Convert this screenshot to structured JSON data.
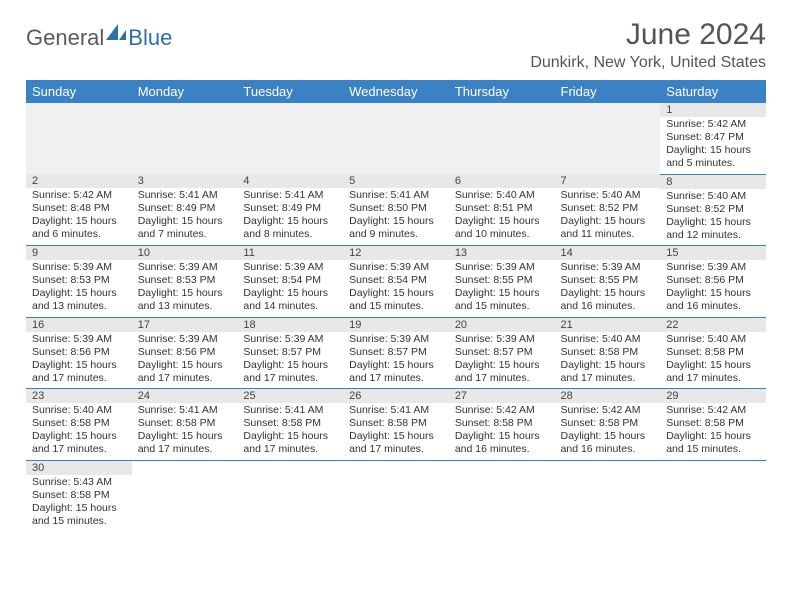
{
  "logo": {
    "general": "General",
    "blue": "Blue"
  },
  "title": "June 2024",
  "location": "Dunkirk, New York, United States",
  "colors": {
    "header_bg": "#3b82c4",
    "header_text": "#ffffff",
    "daynum_bg": "#e8e8e8",
    "cell_border": "#3b82c4",
    "logo_gray": "#5a5a5a",
    "logo_blue": "#2f6fa8"
  },
  "weekdays": [
    "Sunday",
    "Monday",
    "Tuesday",
    "Wednesday",
    "Thursday",
    "Friday",
    "Saturday"
  ],
  "weeks": [
    [
      {
        "blank": true
      },
      {
        "blank": true
      },
      {
        "blank": true
      },
      {
        "blank": true
      },
      {
        "blank": true
      },
      {
        "blank": true
      },
      {
        "day": "1",
        "sunrise": "Sunrise: 5:42 AM",
        "sunset": "Sunset: 8:47 PM",
        "daylight": "Daylight: 15 hours and 5 minutes."
      }
    ],
    [
      {
        "day": "2",
        "sunrise": "Sunrise: 5:42 AM",
        "sunset": "Sunset: 8:48 PM",
        "daylight": "Daylight: 15 hours and 6 minutes."
      },
      {
        "day": "3",
        "sunrise": "Sunrise: 5:41 AM",
        "sunset": "Sunset: 8:49 PM",
        "daylight": "Daylight: 15 hours and 7 minutes."
      },
      {
        "day": "4",
        "sunrise": "Sunrise: 5:41 AM",
        "sunset": "Sunset: 8:49 PM",
        "daylight": "Daylight: 15 hours and 8 minutes."
      },
      {
        "day": "5",
        "sunrise": "Sunrise: 5:41 AM",
        "sunset": "Sunset: 8:50 PM",
        "daylight": "Daylight: 15 hours and 9 minutes."
      },
      {
        "day": "6",
        "sunrise": "Sunrise: 5:40 AM",
        "sunset": "Sunset: 8:51 PM",
        "daylight": "Daylight: 15 hours and 10 minutes."
      },
      {
        "day": "7",
        "sunrise": "Sunrise: 5:40 AM",
        "sunset": "Sunset: 8:52 PM",
        "daylight": "Daylight: 15 hours and 11 minutes."
      },
      {
        "day": "8",
        "sunrise": "Sunrise: 5:40 AM",
        "sunset": "Sunset: 8:52 PM",
        "daylight": "Daylight: 15 hours and 12 minutes."
      }
    ],
    [
      {
        "day": "9",
        "sunrise": "Sunrise: 5:39 AM",
        "sunset": "Sunset: 8:53 PM",
        "daylight": "Daylight: 15 hours and 13 minutes."
      },
      {
        "day": "10",
        "sunrise": "Sunrise: 5:39 AM",
        "sunset": "Sunset: 8:53 PM",
        "daylight": "Daylight: 15 hours and 13 minutes."
      },
      {
        "day": "11",
        "sunrise": "Sunrise: 5:39 AM",
        "sunset": "Sunset: 8:54 PM",
        "daylight": "Daylight: 15 hours and 14 minutes."
      },
      {
        "day": "12",
        "sunrise": "Sunrise: 5:39 AM",
        "sunset": "Sunset: 8:54 PM",
        "daylight": "Daylight: 15 hours and 15 minutes."
      },
      {
        "day": "13",
        "sunrise": "Sunrise: 5:39 AM",
        "sunset": "Sunset: 8:55 PM",
        "daylight": "Daylight: 15 hours and 15 minutes."
      },
      {
        "day": "14",
        "sunrise": "Sunrise: 5:39 AM",
        "sunset": "Sunset: 8:55 PM",
        "daylight": "Daylight: 15 hours and 16 minutes."
      },
      {
        "day": "15",
        "sunrise": "Sunrise: 5:39 AM",
        "sunset": "Sunset: 8:56 PM",
        "daylight": "Daylight: 15 hours and 16 minutes."
      }
    ],
    [
      {
        "day": "16",
        "sunrise": "Sunrise: 5:39 AM",
        "sunset": "Sunset: 8:56 PM",
        "daylight": "Daylight: 15 hours and 17 minutes."
      },
      {
        "day": "17",
        "sunrise": "Sunrise: 5:39 AM",
        "sunset": "Sunset: 8:56 PM",
        "daylight": "Daylight: 15 hours and 17 minutes."
      },
      {
        "day": "18",
        "sunrise": "Sunrise: 5:39 AM",
        "sunset": "Sunset: 8:57 PM",
        "daylight": "Daylight: 15 hours and 17 minutes."
      },
      {
        "day": "19",
        "sunrise": "Sunrise: 5:39 AM",
        "sunset": "Sunset: 8:57 PM",
        "daylight": "Daylight: 15 hours and 17 minutes."
      },
      {
        "day": "20",
        "sunrise": "Sunrise: 5:39 AM",
        "sunset": "Sunset: 8:57 PM",
        "daylight": "Daylight: 15 hours and 17 minutes."
      },
      {
        "day": "21",
        "sunrise": "Sunrise: 5:40 AM",
        "sunset": "Sunset: 8:58 PM",
        "daylight": "Daylight: 15 hours and 17 minutes."
      },
      {
        "day": "22",
        "sunrise": "Sunrise: 5:40 AM",
        "sunset": "Sunset: 8:58 PM",
        "daylight": "Daylight: 15 hours and 17 minutes."
      }
    ],
    [
      {
        "day": "23",
        "sunrise": "Sunrise: 5:40 AM",
        "sunset": "Sunset: 8:58 PM",
        "daylight": "Daylight: 15 hours and 17 minutes."
      },
      {
        "day": "24",
        "sunrise": "Sunrise: 5:41 AM",
        "sunset": "Sunset: 8:58 PM",
        "daylight": "Daylight: 15 hours and 17 minutes."
      },
      {
        "day": "25",
        "sunrise": "Sunrise: 5:41 AM",
        "sunset": "Sunset: 8:58 PM",
        "daylight": "Daylight: 15 hours and 17 minutes."
      },
      {
        "day": "26",
        "sunrise": "Sunrise: 5:41 AM",
        "sunset": "Sunset: 8:58 PM",
        "daylight": "Daylight: 15 hours and 17 minutes."
      },
      {
        "day": "27",
        "sunrise": "Sunrise: 5:42 AM",
        "sunset": "Sunset: 8:58 PM",
        "daylight": "Daylight: 15 hours and 16 minutes."
      },
      {
        "day": "28",
        "sunrise": "Sunrise: 5:42 AM",
        "sunset": "Sunset: 8:58 PM",
        "daylight": "Daylight: 15 hours and 16 minutes."
      },
      {
        "day": "29",
        "sunrise": "Sunrise: 5:42 AM",
        "sunset": "Sunset: 8:58 PM",
        "daylight": "Daylight: 15 hours and 15 minutes."
      }
    ],
    [
      {
        "day": "30",
        "sunrise": "Sunrise: 5:43 AM",
        "sunset": "Sunset: 8:58 PM",
        "daylight": "Daylight: 15 hours and 15 minutes."
      },
      {
        "blank": true
      },
      {
        "blank": true
      },
      {
        "blank": true
      },
      {
        "blank": true
      },
      {
        "blank": true
      },
      {
        "blank": true
      }
    ]
  ]
}
